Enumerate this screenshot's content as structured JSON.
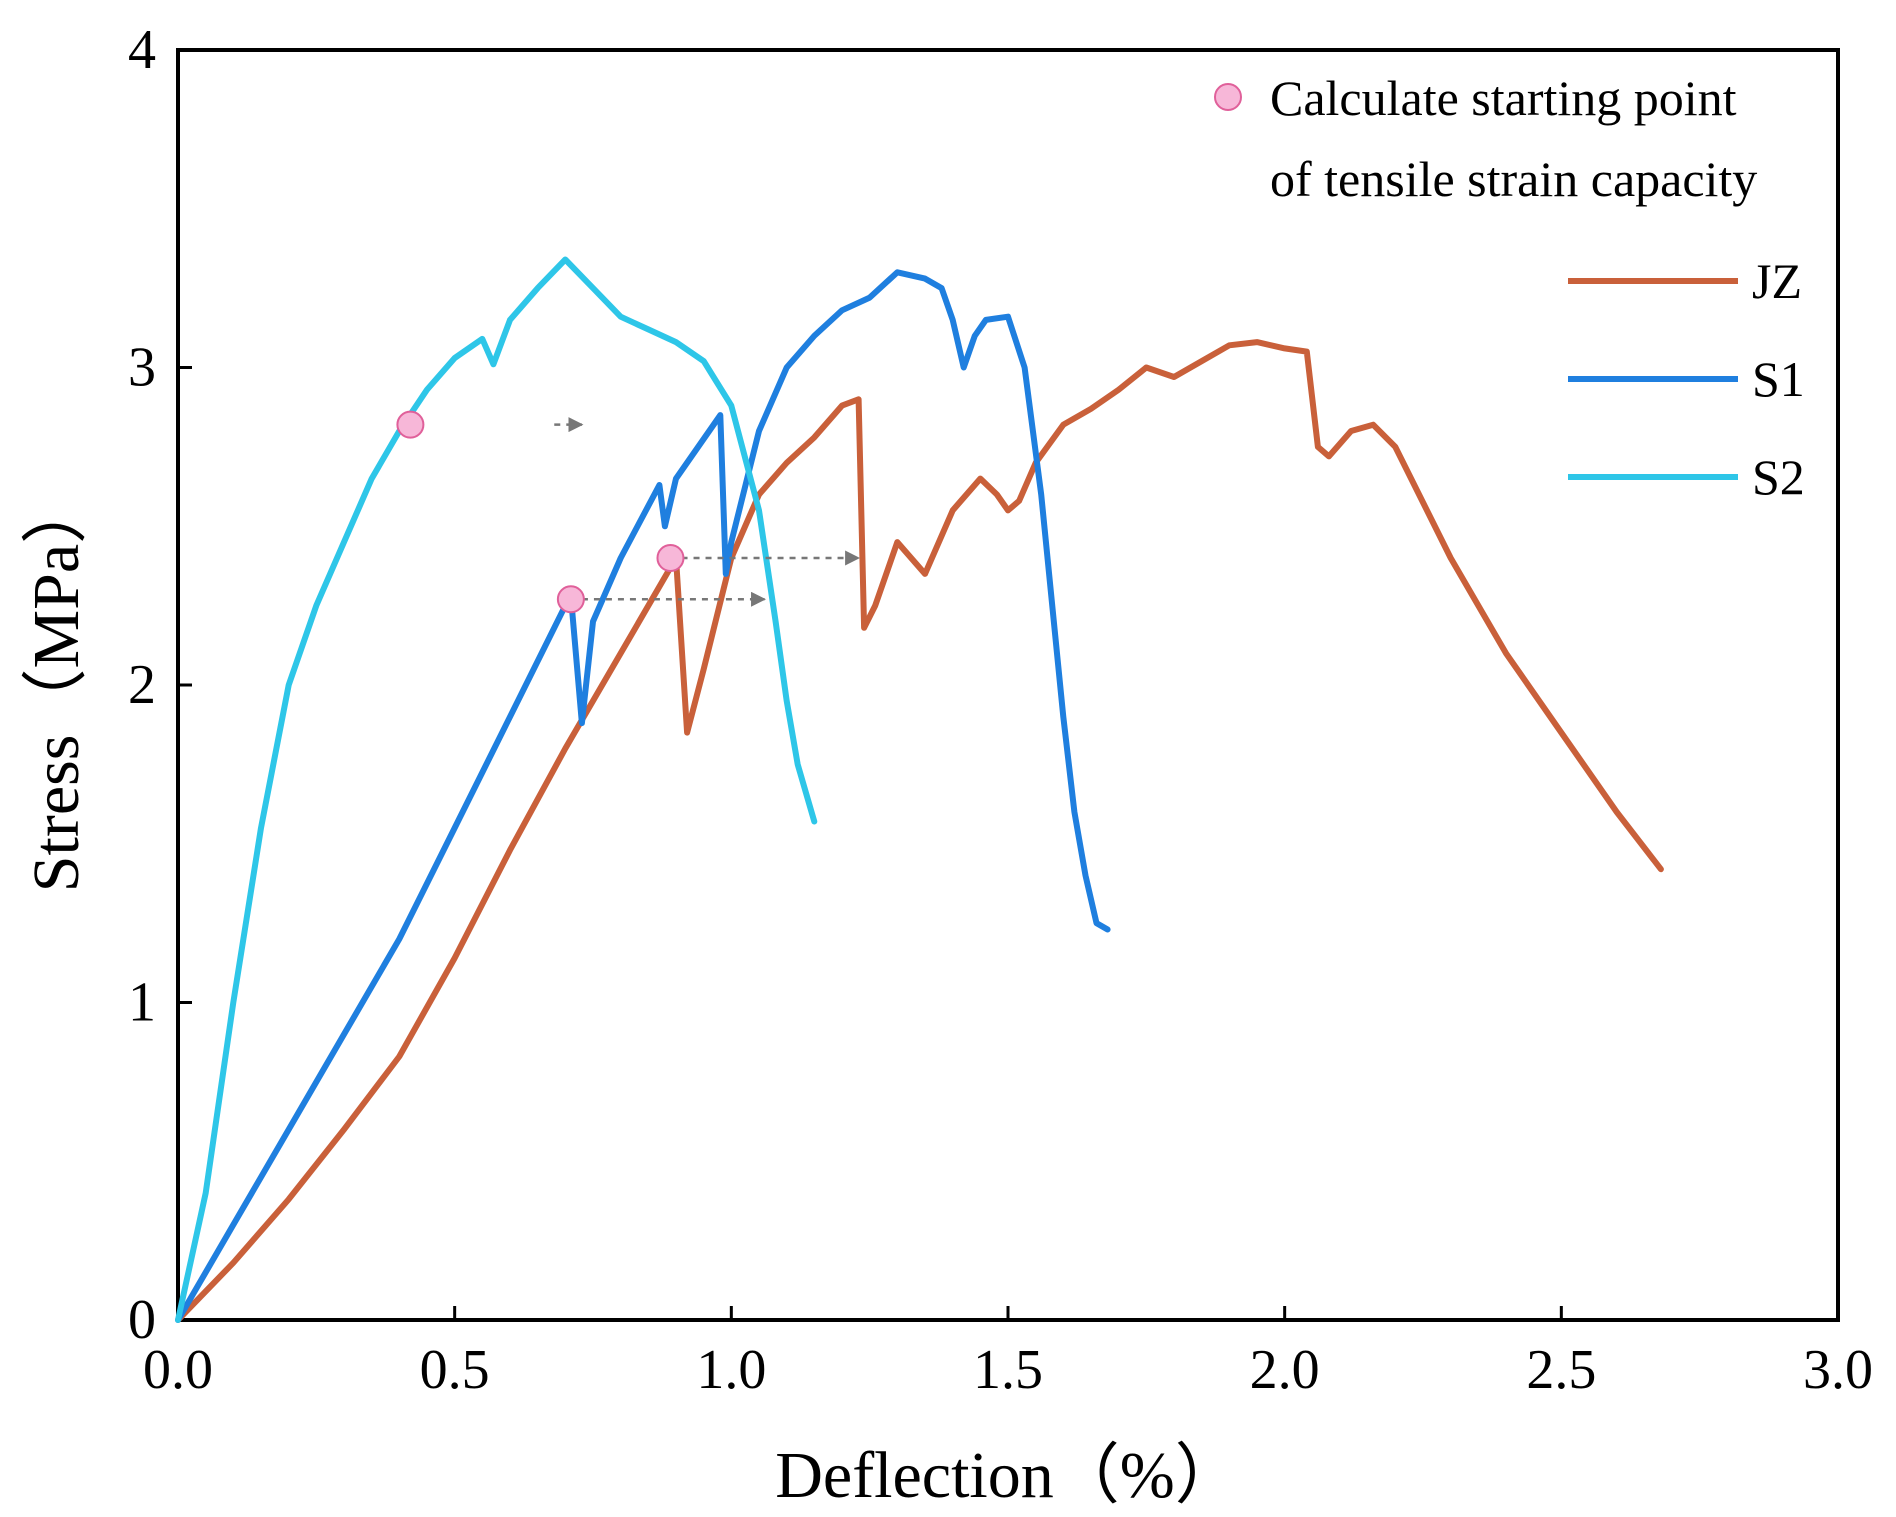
{
  "chart_data": {
    "type": "line",
    "xlabel": "Deflection（%）",
    "ylabel": "Stress（MPa）",
    "xlim": [
      0,
      3.0
    ],
    "ylim": [
      0,
      4
    ],
    "xticks": [
      0.0,
      0.5,
      1.0,
      1.5,
      2.0,
      2.5,
      3.0
    ],
    "xtick_labels": [
      "0.0",
      "0.5",
      "1.0",
      "1.5",
      "2.0",
      "2.5",
      "3.0"
    ],
    "yticks": [
      0,
      1,
      2,
      3,
      4
    ],
    "ytick_labels": [
      "0",
      "1",
      "2",
      "3",
      "4"
    ],
    "grid": false,
    "legend_position": "top-right",
    "marker_legend": {
      "line1": "Calculate starting point",
      "line2": "of tensile strain capacity",
      "color": "#f7b7d8",
      "edge_color": "#e0609a"
    },
    "series": [
      {
        "name": "JZ",
        "color": "#c9603a",
        "x": [
          0,
          0.1,
          0.2,
          0.3,
          0.4,
          0.5,
          0.6,
          0.7,
          0.8,
          0.9,
          0.92,
          0.95,
          1.0,
          1.05,
          1.1,
          1.15,
          1.2,
          1.23,
          1.24,
          1.26,
          1.3,
          1.35,
          1.4,
          1.45,
          1.48,
          1.5,
          1.52,
          1.55,
          1.6,
          1.65,
          1.7,
          1.75,
          1.8,
          1.85,
          1.9,
          1.95,
          2.0,
          2.04,
          2.06,
          2.08,
          2.12,
          2.16,
          2.2,
          2.3,
          2.4,
          2.5,
          2.6,
          2.68
        ],
        "y": [
          0,
          0.18,
          0.38,
          0.6,
          0.83,
          1.14,
          1.48,
          1.8,
          2.1,
          2.4,
          1.85,
          2.05,
          2.4,
          2.6,
          2.7,
          2.78,
          2.88,
          2.9,
          2.18,
          2.25,
          2.45,
          2.35,
          2.55,
          2.65,
          2.6,
          2.55,
          2.58,
          2.7,
          2.82,
          2.87,
          2.93,
          3.0,
          2.97,
          3.02,
          3.07,
          3.08,
          3.06,
          3.05,
          2.75,
          2.72,
          2.8,
          2.82,
          2.75,
          2.4,
          2.1,
          1.85,
          1.6,
          1.42
        ]
      },
      {
        "name": "S1",
        "color": "#1f7fdf",
        "x": [
          0,
          0.1,
          0.2,
          0.3,
          0.4,
          0.5,
          0.6,
          0.7,
          0.71,
          0.73,
          0.75,
          0.8,
          0.87,
          0.88,
          0.9,
          0.98,
          0.99,
          1.0,
          1.05,
          1.1,
          1.15,
          1.2,
          1.25,
          1.3,
          1.35,
          1.38,
          1.4,
          1.42,
          1.44,
          1.46,
          1.5,
          1.53,
          1.56,
          1.6,
          1.62,
          1.64,
          1.66,
          1.68
        ],
        "y": [
          0,
          0.3,
          0.6,
          0.9,
          1.2,
          1.55,
          1.9,
          2.25,
          2.28,
          1.88,
          2.2,
          2.4,
          2.63,
          2.5,
          2.65,
          2.85,
          2.35,
          2.45,
          2.8,
          3.0,
          3.1,
          3.18,
          3.22,
          3.3,
          3.28,
          3.25,
          3.15,
          3.0,
          3.1,
          3.15,
          3.16,
          3.0,
          2.6,
          1.9,
          1.6,
          1.4,
          1.25,
          1.23
        ]
      },
      {
        "name": "S2",
        "color": "#2ec6e8",
        "x": [
          0,
          0.05,
          0.1,
          0.15,
          0.2,
          0.25,
          0.3,
          0.35,
          0.4,
          0.45,
          0.5,
          0.55,
          0.57,
          0.6,
          0.65,
          0.7,
          0.75,
          0.8,
          0.85,
          0.9,
          0.95,
          1.0,
          1.05,
          1.08,
          1.1,
          1.12,
          1.15
        ],
        "y": [
          0,
          0.4,
          1.0,
          1.55,
          2.0,
          2.25,
          2.45,
          2.65,
          2.8,
          2.93,
          3.03,
          3.09,
          3.01,
          3.15,
          3.25,
          3.34,
          3.25,
          3.16,
          3.12,
          3.08,
          3.02,
          2.88,
          2.55,
          2.2,
          1.95,
          1.75,
          1.57
        ]
      }
    ],
    "starting_points": [
      {
        "series": "S2",
        "x": 0.42,
        "y": 2.82
      },
      {
        "series": "S1",
        "x": 0.71,
        "y": 2.27
      },
      {
        "series": "JZ",
        "x": 0.89,
        "y": 2.4
      }
    ],
    "arrows": [
      {
        "x_from": 0.68,
        "x_to": 0.73,
        "y": 2.82
      },
      {
        "x_from": 0.73,
        "x_to": 1.06,
        "y": 2.27
      },
      {
        "x_from": 0.91,
        "x_to": 1.23,
        "y": 2.4
      }
    ]
  }
}
